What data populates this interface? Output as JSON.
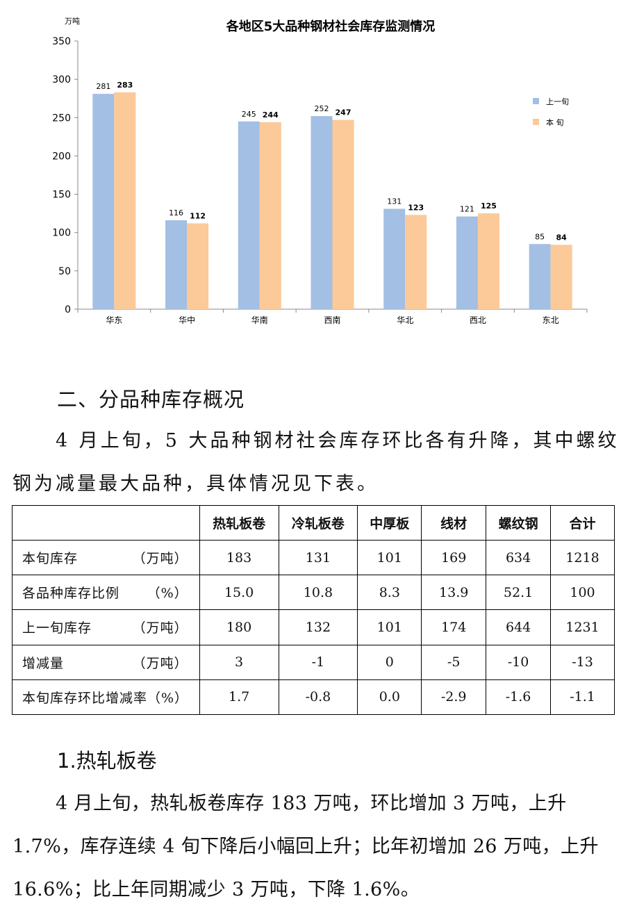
{
  "chart_data": {
    "type": "bar",
    "title": "各地区5大品种钢材社会库存监测情况",
    "ylabel": "万吨",
    "xlabel": "",
    "ylim": [
      0,
      350
    ],
    "yticks": [
      0,
      50,
      100,
      150,
      200,
      250,
      300,
      350
    ],
    "categories": [
      "华东",
      "华中",
      "华南",
      "西南",
      "华北",
      "西北",
      "东北"
    ],
    "series": [
      {
        "name": "上一旬",
        "values": [
          281,
          116,
          245,
          252,
          131,
          121,
          85
        ],
        "color": "#a3bfe3"
      },
      {
        "name": "本  旬",
        "values": [
          283,
          112,
          244,
          247,
          123,
          125,
          84
        ],
        "color": "#fcc998"
      }
    ],
    "legend": "right",
    "grid": false
  },
  "doc": {
    "section_heading": "二、分品种库存概况",
    "intro": "4 月上旬，5 大品种钢材社会库存环比各有升降，其中螺纹钢为减量最大品种，具体情况见下表。",
    "sub_heading": "1.热轧板卷",
    "hr_paragraph": "4 月上旬，热轧板卷库存 183 万吨，环比增加 3 万吨，上升 1.7%，库存连续 4 旬下降后小幅回上升；比年初增加 26 万吨，上升 16.6%；比上年同期减少 3 万吨，下降 1.6%。"
  },
  "table": {
    "headers": [
      "",
      "热轧板卷",
      "冷轧板卷",
      "中厚板",
      "线材",
      "螺纹钢",
      "合计"
    ],
    "rows": [
      {
        "label": "本旬库存",
        "unit": "（万吨）",
        "cells": [
          "183",
          "131",
          "101",
          "169",
          "634",
          "1218"
        ]
      },
      {
        "label": "各品种库存比例",
        "unit": "（%）",
        "cells": [
          "15.0",
          "10.8",
          "8.3",
          "13.9",
          "52.1",
          "100"
        ]
      },
      {
        "label": "上一旬库存",
        "unit": "（万吨）",
        "cells": [
          "180",
          "132",
          "101",
          "174",
          "644",
          "1231"
        ]
      },
      {
        "label": "增减量",
        "unit": "（万吨）",
        "cells": [
          "3",
          "-1",
          "0",
          "-5",
          "-10",
          "-13"
        ]
      },
      {
        "label": "本旬库存环比增减率（%）",
        "unit": "",
        "cells": [
          "1.7",
          "-0.8",
          "0.0",
          "-2.9",
          "-1.6",
          "-1.1"
        ]
      }
    ]
  }
}
